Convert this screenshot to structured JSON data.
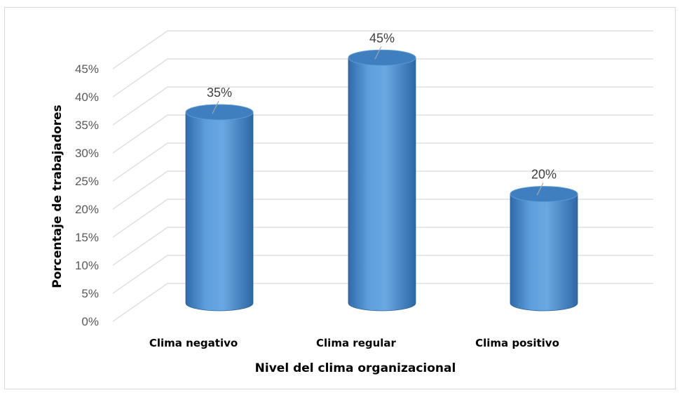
{
  "chart_data": {
    "type": "bar",
    "style": "3d-cylinder",
    "categories": [
      "Clima negativo",
      "Clima regular",
      "Clima positivo"
    ],
    "values": [
      35,
      45,
      20
    ],
    "data_labels": [
      "35%",
      "45%",
      "20%"
    ],
    "ylim": [
      0,
      45
    ],
    "yticks": [
      0,
      5,
      10,
      15,
      20,
      25,
      30,
      35,
      40,
      45
    ],
    "ytick_labels": [
      "0%",
      "5%",
      "10%",
      "15%",
      "20%",
      "25%",
      "30%",
      "35%",
      "40%",
      "45%"
    ],
    "xlabel": "Nivel del clima organizacional",
    "ylabel": "Porcentaje de trabajadores",
    "grid": true,
    "legend": "none",
    "colors": {
      "bar": "#5b9bd5",
      "bar_dark": "#2e6aa8",
      "bar_top": "#3f7fc0",
      "grid": "#d9d9d9",
      "text": "#595959"
    }
  }
}
